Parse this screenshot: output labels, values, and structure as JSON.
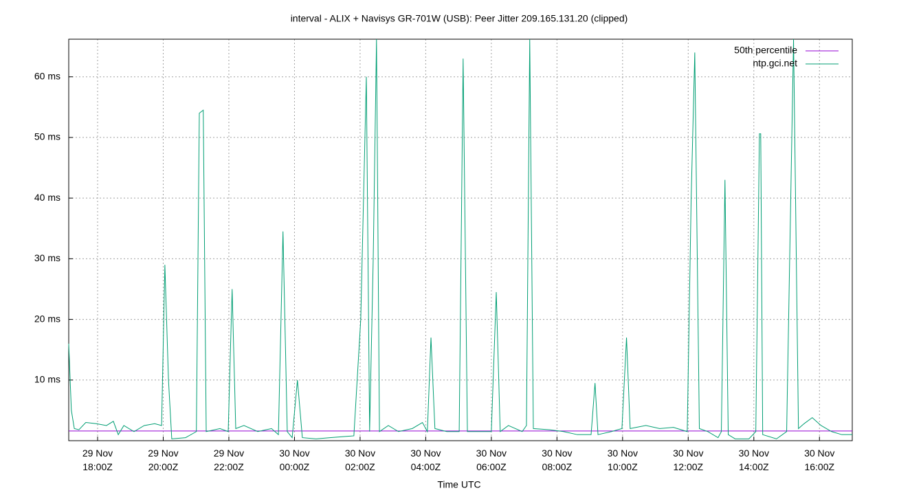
{
  "chart_data": {
    "type": "line",
    "title": "interval - ALIX + Navisys GR-701W (USB): Peer Jitter 209.165.131.20 (clipped)",
    "x_label": "Time UTC",
    "xlim": [
      17.12,
      41.0
    ],
    "xticks": [
      {
        "value": 18,
        "label": "29 Nov\n18:00Z"
      },
      {
        "value": 20,
        "label": "29 Nov\n20:00Z"
      },
      {
        "value": 22,
        "label": "29 Nov\n22:00Z"
      },
      {
        "value": 24,
        "label": "30 Nov\n00:00Z"
      },
      {
        "value": 26,
        "label": "30 Nov\n02:00Z"
      },
      {
        "value": 28,
        "label": "30 Nov\n04:00Z"
      },
      {
        "value": 30,
        "label": "30 Nov\n06:00Z"
      },
      {
        "value": 32,
        "label": "30 Nov\n08:00Z"
      },
      {
        "value": 34,
        "label": "30 Nov\n10:00Z"
      },
      {
        "value": 36,
        "label": "30 Nov\n12:00Z"
      },
      {
        "value": 38,
        "label": "30 Nov\n14:00Z"
      },
      {
        "value": 40,
        "label": "30 Nov\n16:00Z"
      }
    ],
    "ylim": [
      0,
      66.2
    ],
    "yticks": [
      {
        "value": 10,
        "label": "10 ms"
      },
      {
        "value": 20,
        "label": "20 ms"
      },
      {
        "value": 30,
        "label": "30 ms"
      },
      {
        "value": 40,
        "label": "40 ms"
      },
      {
        "value": 50,
        "label": "50 ms"
      },
      {
        "value": 60,
        "label": "60 ms"
      }
    ],
    "grid": true,
    "legend": "top-right",
    "series": [
      {
        "name": "50th percentile",
        "color": "#9400d3",
        "x": [
          17.12,
          41.0
        ],
        "values": [
          1.6,
          1.6
        ]
      },
      {
        "name": "ntp.gci.net",
        "color": "#009e73",
        "x": [
          17.12,
          17.2,
          17.29,
          17.43,
          17.64,
          17.96,
          18.27,
          18.48,
          18.63,
          18.8,
          19.11,
          19.42,
          19.74,
          19.95,
          20.05,
          20.16,
          20.26,
          20.68,
          21.01,
          21.1,
          21.22,
          21.31,
          21.73,
          21.98,
          22.1,
          22.21,
          22.46,
          22.88,
          23.3,
          23.51,
          23.65,
          23.78,
          23.93,
          24.09,
          24.24,
          24.66,
          25.08,
          25.81,
          26.02,
          26.19,
          26.29,
          26.4,
          26.5,
          26.59,
          26.86,
          27.17,
          27.59,
          27.9,
          28.05,
          28.16,
          28.28,
          28.64,
          29.02,
          29.14,
          29.27,
          29.69,
          30.0,
          30.15,
          30.27,
          30.52,
          30.94,
          31.07,
          31.17,
          31.28,
          31.78,
          32.2,
          32.62,
          33.04,
          33.16,
          33.25,
          33.66,
          33.98,
          34.12,
          34.23,
          34.71,
          35.13,
          35.55,
          35.97,
          36.09,
          36.2,
          36.34,
          36.6,
          36.91,
          37.01,
          37.12,
          37.22,
          37.43,
          37.85,
          38.06,
          38.17,
          38.21,
          38.27,
          38.69,
          39.0,
          39.21,
          39.36,
          39.53,
          39.78,
          40.05,
          40.37,
          40.68,
          41.0
        ],
        "values": [
          16,
          5,
          2,
          1.8,
          3,
          2.8,
          2.5,
          3.2,
          1.0,
          2.5,
          1.5,
          2.5,
          2.8,
          2.5,
          29,
          10,
          0.3,
          0.5,
          1.5,
          54,
          54.5,
          1.5,
          2,
          1.5,
          25,
          2,
          2.5,
          1.5,
          2,
          1.0,
          34.5,
          1.5,
          0.5,
          10,
          0.5,
          0.3,
          0.5,
          0.8,
          20,
          60,
          1.5,
          30,
          66.2,
          1.5,
          2.5,
          1.5,
          2,
          3,
          1.5,
          17,
          2,
          1.5,
          1.5,
          63,
          1.5,
          1.5,
          1.5,
          24.5,
          1.5,
          2.5,
          1.5,
          2.5,
          66.2,
          2,
          1.8,
          1.5,
          1.0,
          1.0,
          9.5,
          1,
          1.5,
          2,
          17,
          2,
          2.5,
          2,
          2.2,
          1.5,
          40,
          64,
          2,
          1.5,
          0.5,
          1.5,
          43,
          1,
          0.3,
          0.3,
          1.5,
          50.6,
          50.6,
          1,
          0.3,
          1.5,
          66.2,
          2,
          2.8,
          3.8,
          2.5,
          1.5,
          1,
          1
        ]
      }
    ]
  }
}
